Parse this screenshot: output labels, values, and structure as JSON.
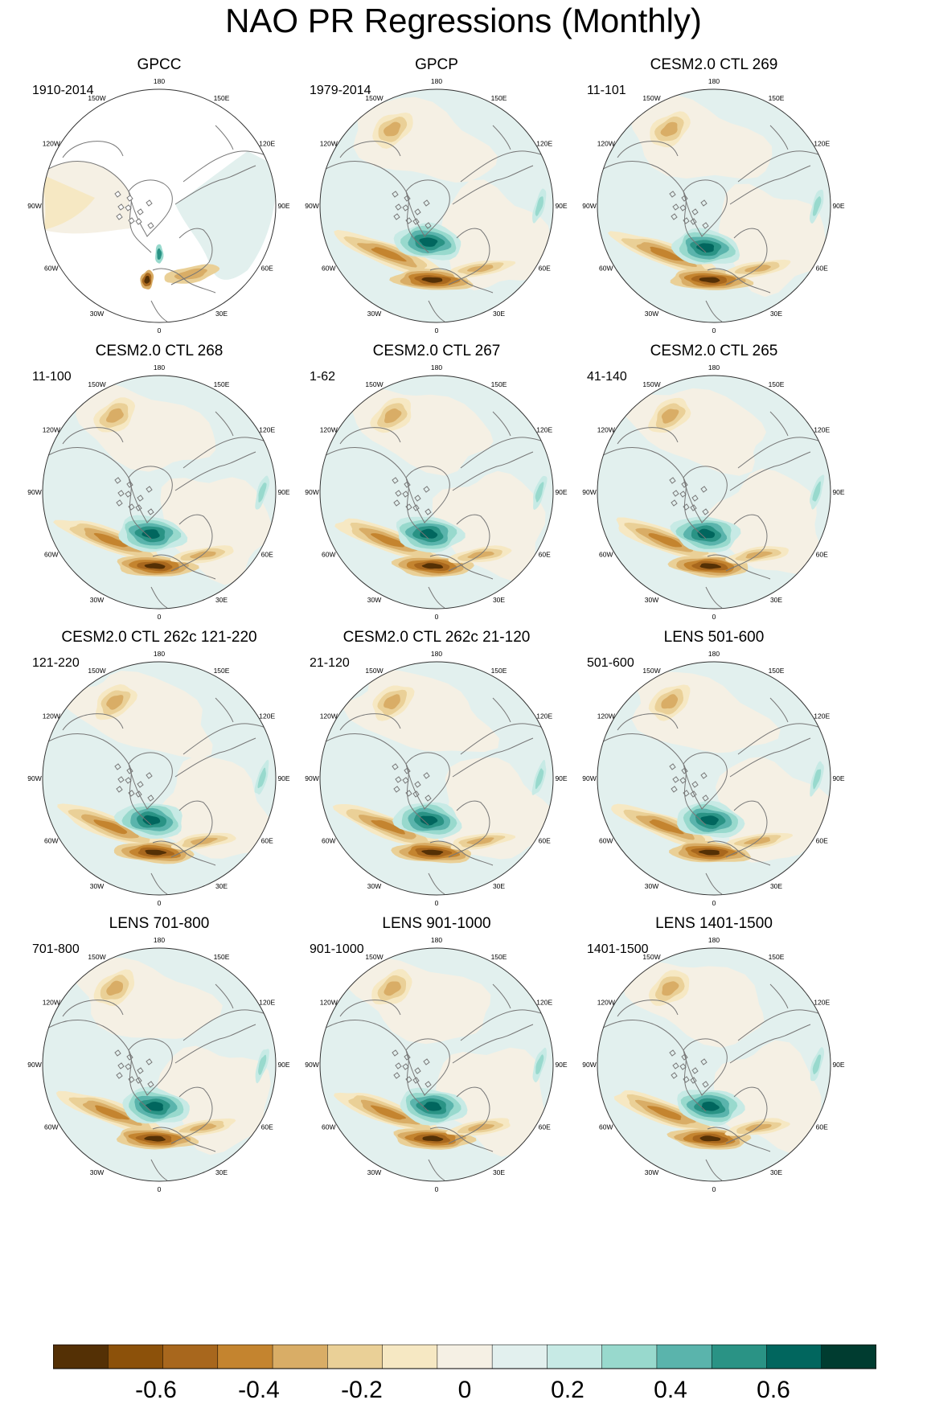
{
  "title": "NAO PR Regressions (Monthly)",
  "panels": [
    {
      "title": "GPCC",
      "period": "1910-2014",
      "pattern": "gpcc"
    },
    {
      "title": "GPCP",
      "period": "1979-2014",
      "pattern": "obs"
    },
    {
      "title": "CESM2.0 CTL 269",
      "period": "11-101",
      "pattern": "model"
    },
    {
      "title": "CESM2.0 CTL 268",
      "period": "11-100",
      "pattern": "model"
    },
    {
      "title": "CESM2.0 CTL 267",
      "period": "1-62",
      "pattern": "model"
    },
    {
      "title": "CESM2.0 CTL 265",
      "period": "41-140",
      "pattern": "model"
    },
    {
      "title": "CESM2.0 CTL 262c 121-220",
      "period": "121-220",
      "pattern": "model"
    },
    {
      "title": "CESM2.0 CTL 262c 21-120",
      "period": "21-120",
      "pattern": "model"
    },
    {
      "title": "LENS 501-600",
      "period": "501-600",
      "pattern": "lens"
    },
    {
      "title": "LENS 701-800",
      "period": "701-800",
      "pattern": "lens"
    },
    {
      "title": "LENS 901-1000",
      "period": "901-1000",
      "pattern": "lens"
    },
    {
      "title": "LENS 1401-1500",
      "period": "1401-1500",
      "pattern": "lens"
    }
  ],
  "longitude_labels": [
    "180",
    "150E",
    "120E",
    "90E",
    "60E",
    "30E",
    "0",
    "30W",
    "60W",
    "90W",
    "120W",
    "150W"
  ],
  "colorbar": {
    "colors": [
      "#543005",
      "#8c510a",
      "#a8671d",
      "#c4842f",
      "#d9ad66",
      "#ead097",
      "#f6e8c3",
      "#f5f0e4",
      "#e2f0ee",
      "#c7eae5",
      "#98d9cd",
      "#5ab4ac",
      "#2a9385",
      "#01665e",
      "#003c30"
    ],
    "tick_labels": [
      "-0.6",
      "-0.4",
      "-0.2",
      "0",
      "0.2",
      "0.4",
      "0.6"
    ],
    "tick_values": [
      -0.6,
      -0.4,
      -0.2,
      0,
      0.2,
      0.4,
      0.6
    ],
    "range": [
      -0.8,
      0.8
    ]
  },
  "colors": {
    "coastline": "#777777",
    "outline": "#333333"
  }
}
